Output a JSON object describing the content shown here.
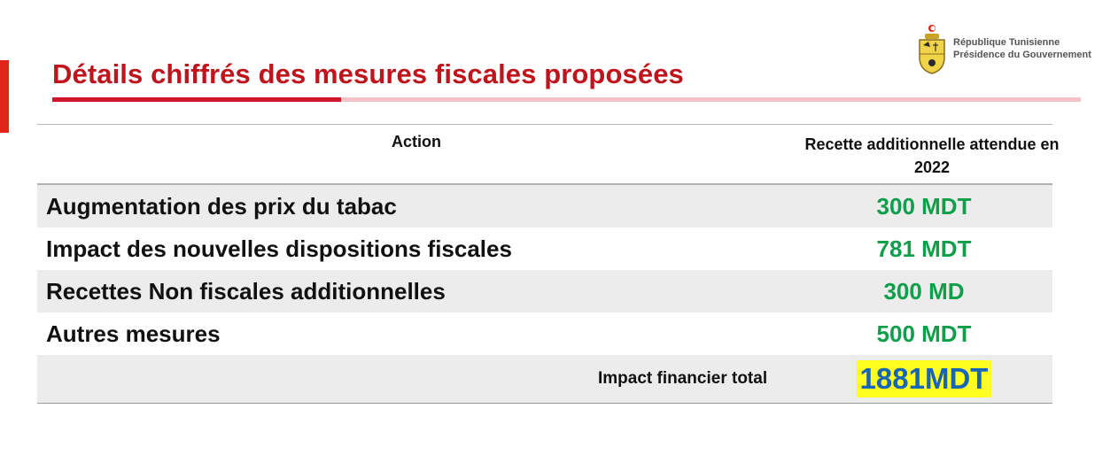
{
  "header": {
    "emblem_icon": "tunisia-coat-of-arms",
    "institution_line1": "République Tunisienne",
    "institution_line2": "Présidence du Gouvernement"
  },
  "slide": {
    "title": "Détails chiffrés des mesures fiscales proposées"
  },
  "table": {
    "columns": [
      "Action",
      "Recette additionnelle attendue en 2022"
    ],
    "rows": [
      {
        "action": "Augmentation des prix du tabac",
        "value": "300 MDT"
      },
      {
        "action": "Impact des nouvelles dispositions fiscales",
        "value": "781 MDT"
      },
      {
        "action": "Recettes Non fiscales additionnelles",
        "value": "300 MD"
      },
      {
        "action": "Autres mesures",
        "value": "500 MDT"
      }
    ],
    "total": {
      "label": "Impact financier total",
      "value": "1881MDT"
    }
  },
  "colors": {
    "title": "#c0141c",
    "accent_red": "#e1251b",
    "value_green": "#0f9e4a",
    "total_value": "#1765b8",
    "total_highlight": "#ffff1f",
    "row_shade": "#ececec"
  }
}
